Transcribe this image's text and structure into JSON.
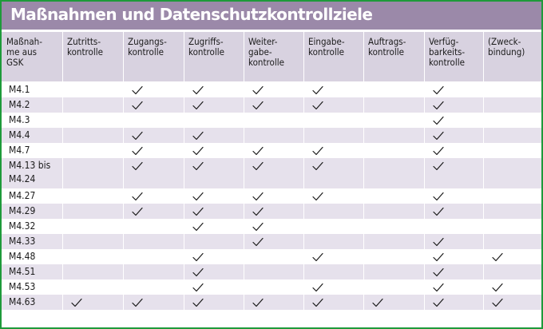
{
  "title": "Maßnahmen und Datenschutzkontrollziele",
  "columns": [
    "Maßnah-\nme aus\nGSK",
    "Zutritts-\nkontrolle",
    "Zugangs-\nkontrolle",
    "Zugriffs-\nkontrolle",
    "Weiter-\ngabe-\nkontrolle",
    "Eingabe-\nkontrolle",
    "Auftrags-\nkontrolle",
    "Verfüg-\nbarkeits-\nkontrolle",
    "(Zweck-\nbindung)"
  ],
  "rows": [
    {
      "measure": "M4.1",
      "checks": [
        false,
        true,
        true,
        true,
        true,
        false,
        true,
        false
      ]
    },
    {
      "measure": "M4.2",
      "checks": [
        false,
        true,
        true,
        true,
        true,
        false,
        true,
        false
      ]
    },
    {
      "measure": "M4.3",
      "checks": [
        false,
        false,
        false,
        false,
        false,
        false,
        true,
        false
      ]
    },
    {
      "measure": "M4.4",
      "checks": [
        false,
        true,
        true,
        false,
        false,
        false,
        true,
        false
      ]
    },
    {
      "measure": "M4.7",
      "checks": [
        false,
        true,
        true,
        true,
        true,
        false,
        true,
        false
      ]
    },
    {
      "measure": "M4.13 bis\nM4.24",
      "checks": [
        false,
        true,
        true,
        true,
        true,
        false,
        true,
        false
      ]
    },
    {
      "measure": "M4.27",
      "checks": [
        false,
        true,
        true,
        true,
        true,
        false,
        true,
        false
      ]
    },
    {
      "measure": "M4.29",
      "checks": [
        false,
        true,
        true,
        true,
        false,
        false,
        true,
        false
      ]
    },
    {
      "measure": "M4.32",
      "checks": [
        false,
        false,
        true,
        true,
        false,
        false,
        false,
        false
      ]
    },
    {
      "measure": "M4.33",
      "checks": [
        false,
        false,
        false,
        true,
        false,
        false,
        true,
        false
      ]
    },
    {
      "measure": "M4.48",
      "checks": [
        false,
        false,
        true,
        false,
        true,
        false,
        true,
        true
      ]
    },
    {
      "measure": "M4.51",
      "checks": [
        false,
        false,
        true,
        false,
        false,
        false,
        true,
        false
      ]
    },
    {
      "measure": "M4.53",
      "checks": [
        false,
        false,
        true,
        false,
        true,
        false,
        true,
        true
      ]
    },
    {
      "measure": "M4.63",
      "checks": [
        true,
        true,
        true,
        true,
        true,
        true,
        true,
        true
      ]
    }
  ]
}
